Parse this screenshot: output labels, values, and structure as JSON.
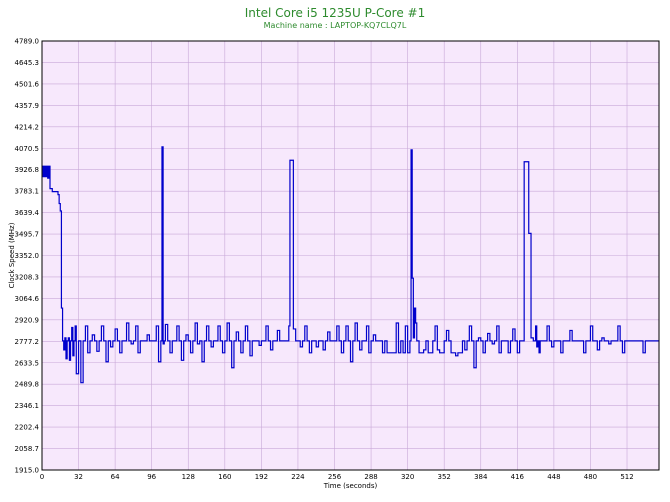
{
  "chart_data": {
    "type": "line",
    "title": "Intel Core i5 1235U P-Core #1",
    "subtitle": "Machine name : LAPTOP-KQ7CLQ7L",
    "xlabel": "Time (seconds)",
    "ylabel": "Clock Speed (MHz)",
    "xlim": [
      0,
      540
    ],
    "ylim": [
      1915.0,
      4789.0
    ],
    "x_ticks": [
      "0",
      "32",
      "64",
      "96",
      "128",
      "160",
      "192",
      "224",
      "256",
      "288",
      "320",
      "352",
      "384",
      "416",
      "448",
      "480",
      "512"
    ],
    "y_ticks": [
      "4789.0",
      "4645.3",
      "4501.6",
      "4357.9",
      "4214.2",
      "4070.5",
      "3926.8",
      "3783.1",
      "3639.4",
      "3495.7",
      "3352.0",
      "3208.3",
      "3064.6",
      "2920.9",
      "2777.2",
      "2633.5",
      "2489.8",
      "2346.1",
      "2202.4",
      "2058.7",
      "1915.0"
    ],
    "grid": true,
    "legend": "none",
    "colors": {
      "line": "#0000cc",
      "plot_bg": "#f7e8fc",
      "grid": "#c8a8d8",
      "title": "#2e8b2e"
    },
    "series": [
      {
        "x": [
          0,
          1,
          2,
          3,
          4,
          5,
          6,
          7,
          8,
          9,
          10,
          11,
          12,
          13,
          14,
          15,
          16,
          17,
          18,
          19,
          20,
          21,
          22,
          23,
          24,
          25,
          26,
          27,
          28,
          29,
          30,
          32,
          34,
          36,
          38,
          40,
          42,
          44,
          46,
          48,
          50,
          52,
          54,
          56,
          58,
          60,
          62,
          64,
          66,
          68,
          70,
          72,
          74,
          76,
          78,
          80,
          82,
          84,
          86,
          88,
          90,
          92,
          94,
          96,
          98,
          100,
          102,
          104,
          105,
          106,
          107,
          108,
          110,
          112,
          114,
          116,
          118,
          120,
          122,
          124,
          126,
          128,
          130,
          132,
          134,
          136,
          138,
          140,
          142,
          144,
          146,
          148,
          150,
          152,
          154,
          156,
          158,
          160,
          162,
          164,
          166,
          168,
          170,
          172,
          174,
          176,
          178,
          180,
          182,
          184,
          186,
          188,
          190,
          192,
          194,
          196,
          198,
          200,
          202,
          204,
          206,
          208,
          210,
          212,
          214,
          215,
          216,
          217,
          218,
          219,
          220,
          222,
          224,
          226,
          228,
          230,
          232,
          234,
          236,
          238,
          240,
          242,
          244,
          246,
          248,
          250,
          252,
          254,
          256,
          258,
          260,
          262,
          264,
          266,
          268,
          270,
          272,
          274,
          276,
          278,
          280,
          282,
          284,
          286,
          288,
          290,
          292,
          294,
          296,
          298,
          300,
          302,
          304,
          306,
          308,
          310,
          312,
          314,
          316,
          318,
          320,
          322,
          323,
          324,
          325,
          326,
          327,
          328,
          330,
          332,
          334,
          336,
          338,
          340,
          342,
          344,
          346,
          348,
          350,
          352,
          354,
          356,
          358,
          360,
          362,
          364,
          366,
          368,
          370,
          372,
          374,
          376,
          378,
          380,
          382,
          384,
          386,
          388,
          390,
          392,
          394,
          396,
          398,
          400,
          402,
          404,
          406,
          408,
          410,
          412,
          414,
          416,
          418,
          420,
          422,
          424,
          426,
          428,
          430,
          431,
          432,
          433,
          434,
          435,
          436,
          438,
          440,
          442,
          444,
          446,
          448,
          450,
          452,
          454,
          456,
          458,
          460,
          462,
          464,
          466,
          468,
          470,
          472,
          474,
          476,
          478,
          480,
          482,
          484,
          486,
          488,
          490,
          492,
          494,
          496,
          498,
          500,
          502,
          504,
          506,
          508,
          510,
          512,
          514,
          516,
          518,
          520,
          522,
          524,
          526,
          528,
          530,
          532,
          534,
          536,
          538,
          540
        ],
        "values": [
          3950,
          3880,
          3950,
          3880,
          3950,
          3870,
          3950,
          3800,
          3800,
          3780,
          3780,
          3780,
          3780,
          3780,
          3760,
          3700,
          3650,
          3000,
          2780,
          2720,
          2800,
          2660,
          2780,
          2800,
          2650,
          2780,
          2870,
          2680,
          2780,
          2880,
          2560,
          2780,
          2500,
          2780,
          2880,
          2700,
          2780,
          2820,
          2780,
          2710,
          2780,
          2880,
          2780,
          2640,
          2780,
          2740,
          2780,
          2860,
          2780,
          2700,
          2780,
          2780,
          2900,
          2780,
          2760,
          2780,
          2880,
          2700,
          2780,
          2780,
          2780,
          2820,
          2780,
          2780,
          2780,
          2880,
          2640,
          2780,
          4080,
          2760,
          2780,
          2890,
          2780,
          2700,
          2780,
          2780,
          2880,
          2780,
          2650,
          2780,
          2820,
          2780,
          2700,
          2780,
          2900,
          2760,
          2780,
          2640,
          2780,
          2880,
          2780,
          2740,
          2780,
          2780,
          2880,
          2780,
          2700,
          2780,
          2900,
          2780,
          2600,
          2780,
          2840,
          2780,
          2700,
          2780,
          2880,
          2780,
          2680,
          2780,
          2780,
          2780,
          2750,
          2780,
          2780,
          2880,
          2780,
          2720,
          2780,
          2780,
          2850,
          2780,
          2780,
          2780,
          2780,
          2780,
          2880,
          3990,
          3990,
          3990,
          2860,
          2780,
          2780,
          2740,
          2780,
          2880,
          2780,
          2700,
          2780,
          2780,
          2740,
          2780,
          2780,
          2720,
          2780,
          2840,
          2780,
          2780,
          2780,
          2880,
          2780,
          2700,
          2780,
          2880,
          2780,
          2640,
          2780,
          2900,
          2780,
          2720,
          2780,
          2780,
          2880,
          2700,
          2780,
          2820,
          2780,
          2780,
          2780,
          2700,
          2780,
          2700,
          2700,
          2700,
          2700,
          2900,
          2700,
          2780,
          2700,
          2880,
          2700,
          2780,
          4060,
          3200,
          2800,
          3000,
          2900,
          2780,
          2700,
          2700,
          2720,
          2780,
          2700,
          2700,
          2780,
          2880,
          2720,
          2700,
          2700,
          2780,
          2850,
          2780,
          2700,
          2700,
          2680,
          2700,
          2700,
          2780,
          2720,
          2780,
          2880,
          2780,
          2600,
          2780,
          2800,
          2780,
          2700,
          2780,
          2830,
          2780,
          2760,
          2780,
          2880,
          2700,
          2780,
          2780,
          2780,
          2700,
          2780,
          2860,
          2780,
          2700,
          2780,
          2780,
          3980,
          3980,
          3500,
          2800,
          2780,
          2780,
          2880,
          2740,
          2780,
          2700,
          2780,
          2780,
          2780,
          2880,
          2780,
          2740,
          2780,
          2780,
          2780,
          2700,
          2780,
          2780,
          2780,
          2850,
          2780,
          2780,
          2780,
          2780,
          2780,
          2700,
          2780,
          2780,
          2880,
          2780,
          2780,
          2720,
          2780,
          2800,
          2780,
          2780,
          2760,
          2780,
          2780,
          2780,
          2880,
          2780,
          2700,
          2780,
          2780,
          2780,
          2780,
          2780,
          2780,
          2780,
          2780,
          2700,
          2780,
          2780,
          2780,
          2780,
          2780,
          2780,
          2780
        ]
      }
    ]
  }
}
